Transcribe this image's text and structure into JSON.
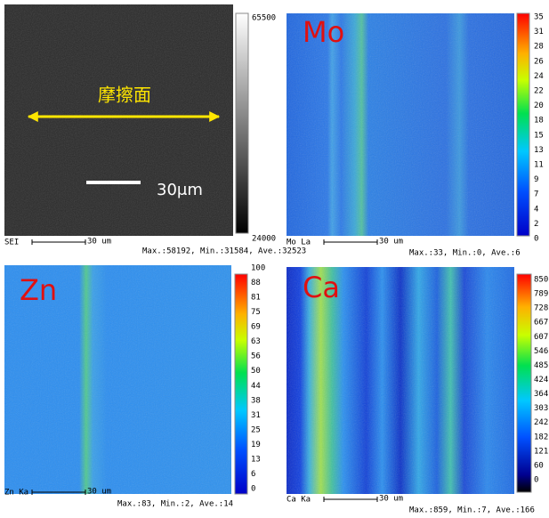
{
  "panels": [
    {
      "label": "SEI",
      "scale_bar": "30 um",
      "stats": "Max.:58192, Min.:31584, Ave.:32523",
      "colorbar": [
        "65500",
        "24000"
      ],
      "annotation": "摩擦面",
      "scale_text": "30μm"
    },
    {
      "label": "Mo La",
      "overlay": "Mo",
      "scale_bar": "30 um",
      "stats": "Max.:33, Min.:0, Ave.:6",
      "colorbar": [
        "35",
        "31",
        "28",
        "26",
        "24",
        "22",
        "20",
        "18",
        "15",
        "13",
        "11",
        "9",
        "7",
        "4",
        "2",
        "0"
      ]
    },
    {
      "label": "Zn Ka",
      "overlay": "Zn",
      "scale_bar": "30 um",
      "stats": "Max.:83, Min.:2, Ave.:14",
      "colorbar": [
        "100",
        "88",
        "81",
        "75",
        "69",
        "63",
        "56",
        "50",
        "44",
        "38",
        "31",
        "25",
        "19",
        "13",
        "6",
        "0"
      ]
    },
    {
      "label": "Ca Ka",
      "overlay": "Ca",
      "scale_bar": "30 um",
      "stats": "Max.:859, Min.:7, Ave.:166",
      "colorbar": [
        "850",
        "789",
        "728",
        "667",
        "607",
        "546",
        "485",
        "424",
        "364",
        "303",
        "242",
        "182",
        "121",
        "60",
        "0"
      ]
    }
  ]
}
